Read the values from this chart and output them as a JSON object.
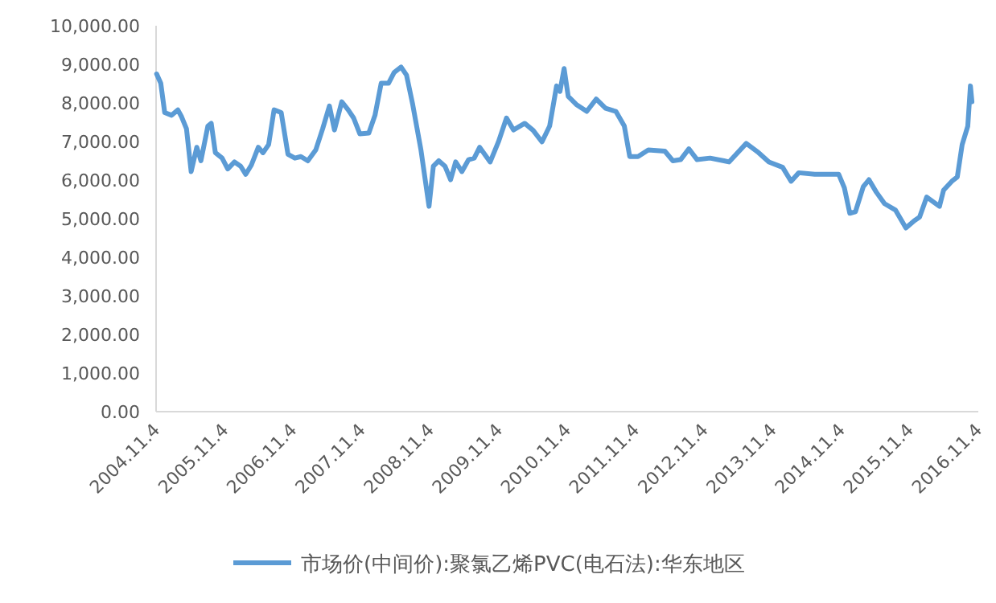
{
  "chart_data": {
    "type": "line",
    "legend": "bottom",
    "x": [
      "2004-11-07",
      "2004-11-29",
      "2004-12-20",
      "2005-01-26",
      "2005-02-28",
      "2005-03-20",
      "2005-04-15",
      "2005-05-10",
      "2005-06-09",
      "2005-07-01",
      "2005-08-07",
      "2005-08-25",
      "2005-09-16",
      "2005-10-22",
      "2005-11-21",
      "2005-12-27",
      "2006-01-29",
      "2006-02-25",
      "2006-03-27",
      "2006-05-03",
      "2006-05-28",
      "2006-06-27",
      "2006-07-26",
      "2006-09-02",
      "2006-10-08",
      "2006-11-14",
      "2006-12-16",
      "2007-01-22",
      "2007-03-05",
      "2007-04-11",
      "2007-05-17",
      "2007-06-13",
      "2007-07-22",
      "2007-08-25",
      "2007-09-23",
      "2007-10-26",
      "2007-12-13",
      "2008-01-15",
      "2008-02-17",
      "2008-03-27",
      "2008-04-26",
      "2008-06-02",
      "2008-07-01",
      "2008-08-03",
      "2008-09-16",
      "2008-10-29",
      "2008-11-21",
      "2008-12-20",
      "2009-01-22",
      "2009-02-21",
      "2009-03-20",
      "2009-04-22",
      "2009-05-28",
      "2009-06-27",
      "2009-07-26",
      "2009-09-20",
      "2009-11-03",
      "2009-12-16",
      "2010-01-22",
      "2010-03-23",
      "2010-05-07",
      "2010-06-23",
      "2010-08-03",
      "2010-09-09",
      "2010-09-27",
      "2010-10-19",
      "2010-11-10",
      "2010-12-23",
      "2011-02-17",
      "2011-04-08",
      "2011-05-28",
      "2011-07-22",
      "2011-09-05",
      "2011-10-04",
      "2011-11-17",
      "2012-01-11",
      "2012-04-08",
      "2012-05-21",
      "2012-07-01",
      "2012-08-14",
      "2012-09-27",
      "2012-12-05",
      "2013-02-17",
      "2013-03-16",
      "2013-06-16",
      "2013-08-21",
      "2013-10-15",
      "2013-12-27",
      "2014-02-10",
      "2014-03-23",
      "2014-06-16",
      "2014-10-22",
      "2014-11-21",
      "2014-12-20",
      "2015-01-19",
      "2015-03-02",
      "2015-04-01",
      "2015-05-10",
      "2015-06-23",
      "2015-08-21",
      "2015-10-15",
      "2015-11-29",
      "2015-12-27",
      "2016-02-03",
      "2016-04-11",
      "2016-05-03",
      "2016-06-16",
      "2016-07-15",
      "2016-08-10",
      "2016-09-09",
      "2016-09-23",
      "2016-10-01"
    ],
    "series": [
      {
        "name": "市场价(中间价):聚氯乙烯PVC(电石法):华东地区",
        "color": "#5b9bd5",
        "values": [
          8750,
          8510,
          7750,
          7680,
          7820,
          7640,
          7330,
          6220,
          6850,
          6500,
          7400,
          7470,
          6710,
          6570,
          6290,
          6470,
          6360,
          6150,
          6390,
          6850,
          6710,
          6920,
          7820,
          7750,
          6670,
          6570,
          6610,
          6500,
          6780,
          7330,
          7920,
          7300,
          8030,
          7820,
          7610,
          7200,
          7220,
          7680,
          8510,
          8510,
          8790,
          8930,
          8720,
          7960,
          6780,
          5320,
          6360,
          6500,
          6360,
          6010,
          6470,
          6220,
          6530,
          6570,
          6850,
          6470,
          6990,
          7610,
          7300,
          7470,
          7290,
          6990,
          7400,
          8440,
          8300,
          8890,
          8170,
          7960,
          7780,
          8100,
          7860,
          7780,
          7400,
          6610,
          6610,
          6780,
          6750,
          6500,
          6530,
          6810,
          6530,
          6570,
          6500,
          6470,
          6950,
          6710,
          6470,
          6330,
          5970,
          6190,
          6150,
          6150,
          5800,
          5140,
          5180,
          5830,
          6010,
          5690,
          5390,
          5220,
          4760,
          4950,
          5040,
          5560,
          5320,
          5740,
          5970,
          6080,
          6920,
          7400,
          8440,
          8030
        ]
      }
    ],
    "xlim": [
      "2004-11-04",
      "2016-11-04"
    ],
    "xticks": [
      {
        "value": "2004-11-04",
        "label": "2004.11.4"
      },
      {
        "value": "2005-11-04",
        "label": "2005.11.4"
      },
      {
        "value": "2006-11-04",
        "label": "2006.11.4"
      },
      {
        "value": "2007-11-04",
        "label": "2007.11.4"
      },
      {
        "value": "2008-11-04",
        "label": "2008.11.4"
      },
      {
        "value": "2009-11-04",
        "label": "2009.11.4"
      },
      {
        "value": "2010-11-04",
        "label": "2010.11.4"
      },
      {
        "value": "2011-11-04",
        "label": "2011.11.4"
      },
      {
        "value": "2012-11-04",
        "label": "2012.11.4"
      },
      {
        "value": "2013-11-04",
        "label": "2013.11.4"
      },
      {
        "value": "2014-11-04",
        "label": "2014.11.4"
      },
      {
        "value": "2015-11-04",
        "label": "2015.11.4"
      },
      {
        "value": "2016-11-04",
        "label": "2016.11.4"
      }
    ],
    "ylim": [
      0,
      10000
    ],
    "yticks": [
      {
        "value": 0,
        "label": "0.00"
      },
      {
        "value": 1000,
        "label": "1,000.00"
      },
      {
        "value": 2000,
        "label": "2,000.00"
      },
      {
        "value": 3000,
        "label": "3,000.00"
      },
      {
        "value": 4000,
        "label": "4,000.00"
      },
      {
        "value": 5000,
        "label": "5,000.00"
      },
      {
        "value": 6000,
        "label": "6,000.00"
      },
      {
        "value": 7000,
        "label": "7,000.00"
      },
      {
        "value": 8000,
        "label": "8,000.00"
      },
      {
        "value": 9000,
        "label": "9,000.00"
      },
      {
        "value": 10000,
        "label": "10,000.00"
      }
    ]
  }
}
